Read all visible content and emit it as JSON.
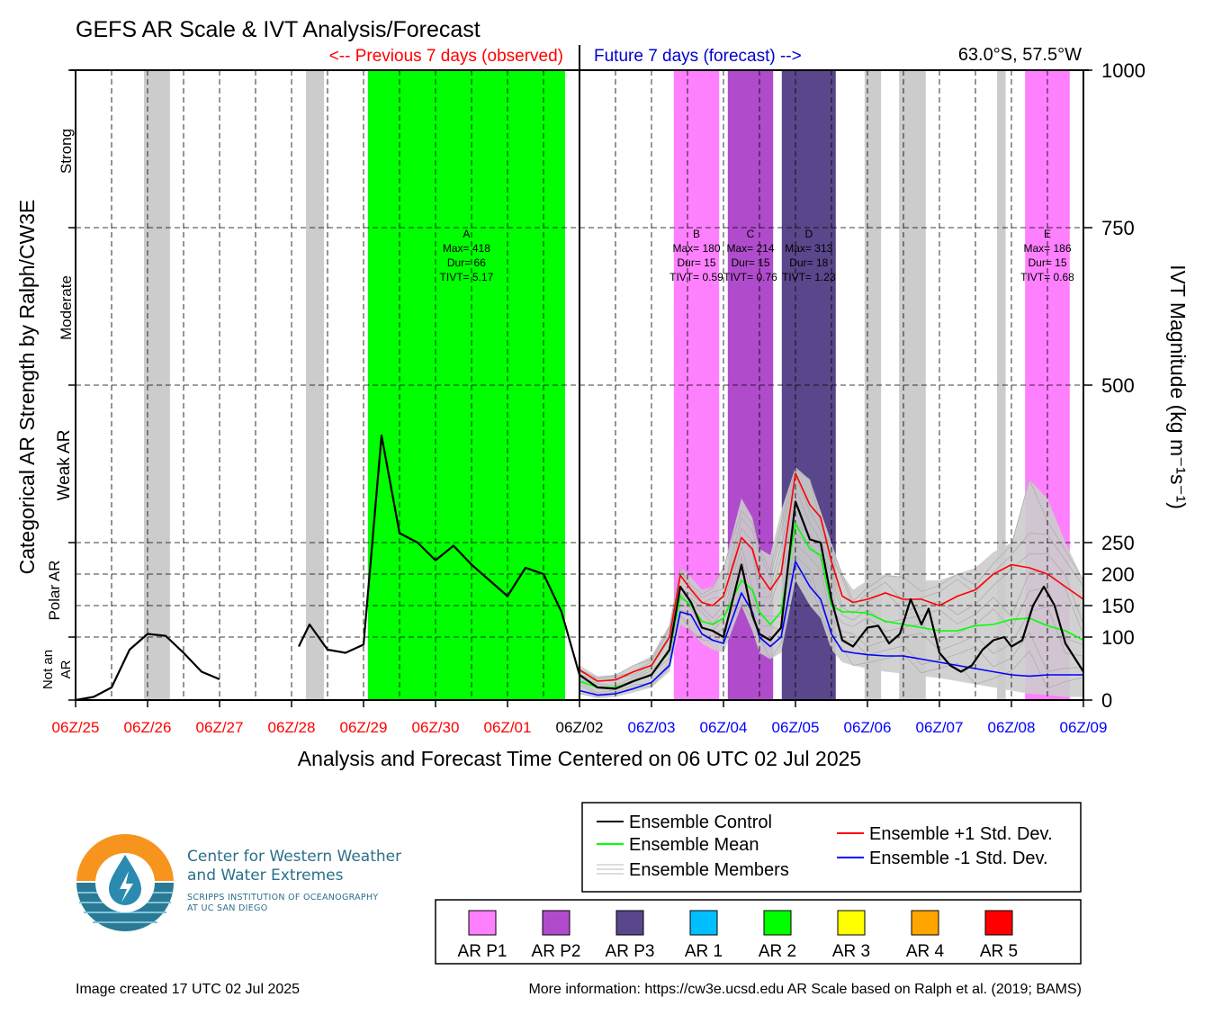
{
  "title": "GEFS AR Scale & IVT Analysis/Forecast",
  "location": "63.0°S, 57.5°W",
  "previous_label": "<-- Previous 7 days (observed)",
  "future_label": "Future 7 days (forecast) -->",
  "xlabel": "Analysis and Forecast Time Centered on 06 UTC 02 Jul 2025",
  "ylabel_left": "Categorical AR Strength by Ralph/CW3E",
  "ylabel_right": "IVT Magnitude (kg m⁻¹s⁻¹)",
  "category_labels": [
    "Strong",
    "Moderate",
    "Weak AR",
    "Polar AR",
    "Not an",
    "AR"
  ],
  "legend": {
    "control": "Ensemble Control",
    "mean": "Ensemble Mean",
    "members": "Ensemble Members",
    "plus_std": "Ensemble +1 Std. Dev.",
    "minus_std": "Ensemble -1 Std. Dev."
  },
  "ar_legend": [
    {
      "label": "AR P1",
      "color": "#ff80ff"
    },
    {
      "label": "AR P2",
      "color": "#b04ccc"
    },
    {
      "label": "AR P3",
      "color": "#5a468a"
    },
    {
      "label": "AR 1",
      "color": "#00bfff"
    },
    {
      "label": "AR 2",
      "color": "#00ff00"
    },
    {
      "label": "AR 3",
      "color": "#ffff00"
    },
    {
      "label": "AR 4",
      "color": "#ffa500"
    },
    {
      "label": "AR 5",
      "color": "#ff0000"
    }
  ],
  "logo": {
    "title_line1": "Center for Western Weather",
    "title_line2": "and Water Extremes",
    "sub_line1": "SCRIPPS INSTITUTION OF OCEANOGRAPHY",
    "sub_line2": "AT UC SAN DIEGO"
  },
  "footer_left": "Image created 17 UTC 02 Jul 2025",
  "footer_right": "More information: https://cw3e.ucsd.edu AR Scale based on Ralph et al. (2019; BAMS)",
  "chart_data": {
    "type": "line",
    "x_unit": "days relative to 06Z/02 Jul 2025",
    "xlim": [
      -7,
      7
    ],
    "ylim": [
      0,
      1000
    ],
    "grid": true,
    "x_ticks": [
      {
        "x": -7,
        "label": "06Z/25",
        "color": "#ff0000"
      },
      {
        "x": -6,
        "label": "06Z/26",
        "color": "#ff0000"
      },
      {
        "x": -5,
        "label": "06Z/27",
        "color": "#ff0000"
      },
      {
        "x": -4,
        "label": "06Z/28",
        "color": "#ff0000"
      },
      {
        "x": -3,
        "label": "06Z/29",
        "color": "#ff0000"
      },
      {
        "x": -2,
        "label": "06Z/30",
        "color": "#ff0000"
      },
      {
        "x": -1,
        "label": "06Z/01",
        "color": "#ff0000"
      },
      {
        "x": 0,
        "label": "06Z/02",
        "color": "#000000"
      },
      {
        "x": 1,
        "label": "06Z/03",
        "color": "#0000ff"
      },
      {
        "x": 2,
        "label": "06Z/04",
        "color": "#0000ff"
      },
      {
        "x": 3,
        "label": "06Z/05",
        "color": "#0000ff"
      },
      {
        "x": 4,
        "label": "06Z/06",
        "color": "#0000ff"
      },
      {
        "x": 5,
        "label": "06Z/07",
        "color": "#0000ff"
      },
      {
        "x": 6,
        "label": "06Z/08",
        "color": "#0000ff"
      },
      {
        "x": 7,
        "label": "06Z/09",
        "color": "#0000ff"
      }
    ],
    "y_ticks_right": [
      0,
      100,
      150,
      200,
      250,
      500,
      750,
      1000
    ],
    "grey_bands": [
      [
        -6.05,
        -5.69
      ],
      [
        -3.8,
        -3.55
      ],
      [
        3.96,
        4.19
      ],
      [
        4.44,
        4.81
      ],
      [
        5.8,
        5.92
      ]
    ],
    "ar_events": [
      {
        "id": "A",
        "start": -2.94,
        "end": -0.2,
        "color": "#00ff00",
        "max": 418,
        "dur": 66,
        "tivt": "5.17"
      },
      {
        "id": "B",
        "start": 1.31,
        "end": 1.94,
        "color": "#ff80ff",
        "max": 180,
        "dur": 15,
        "tivt": "0.59"
      },
      {
        "id": "C",
        "start": 2.06,
        "end": 2.69,
        "color": "#b04ccc",
        "max": 214,
        "dur": 15,
        "tivt": "0.76"
      },
      {
        "id": "D",
        "start": 2.81,
        "end": 3.56,
        "color": "#5a468a",
        "max": 313,
        "dur": 18,
        "tivt": "1.23"
      },
      {
        "id": "E",
        "start": 6.19,
        "end": 6.81,
        "color": "#ff80ff",
        "max": 186,
        "dur": 15,
        "tivt": "0.68"
      }
    ],
    "series": [
      {
        "name": "Ensemble Control",
        "color": "#000000",
        "segments": [
          [
            [
              -7,
              0
            ],
            [
              -6.75,
              5
            ],
            [
              -6.5,
              20
            ],
            [
              -6.25,
              80
            ],
            [
              -6,
              105
            ],
            [
              -5.75,
              102
            ],
            [
              -5.5,
              75
            ],
            [
              -5.25,
              45
            ],
            [
              -5,
              33
            ]
          ],
          [
            [
              -3.9,
              85
            ],
            [
              -3.75,
              120
            ],
            [
              -3.5,
              80
            ],
            [
              -3.25,
              75
            ],
            [
              -3,
              88
            ],
            [
              -2.75,
              420
            ],
            [
              -2.5,
              265
            ],
            [
              -2.25,
              250
            ],
            [
              -2,
              222
            ],
            [
              -1.75,
              245
            ],
            [
              -1.5,
              215
            ],
            [
              -1.25,
              190
            ],
            [
              -1,
              165
            ],
            [
              -0.75,
              210
            ],
            [
              -0.5,
              200
            ],
            [
              -0.25,
              140
            ],
            [
              0,
              40
            ],
            [
              0.25,
              20
            ],
            [
              0.5,
              18
            ],
            [
              0.75,
              30
            ],
            [
              1,
              40
            ],
            [
              1.25,
              80
            ],
            [
              1.4,
              180
            ],
            [
              1.55,
              155
            ],
            [
              1.7,
              115
            ],
            [
              1.85,
              110
            ],
            [
              2,
              100
            ],
            [
              2.25,
              215
            ],
            [
              2.4,
              135
            ],
            [
              2.5,
              105
            ],
            [
              2.65,
              95
            ],
            [
              2.8,
              115
            ],
            [
              3,
              315
            ],
            [
              3.2,
              255
            ],
            [
              3.35,
              250
            ],
            [
              3.5,
              160
            ],
            [
              3.65,
              95
            ],
            [
              3.8,
              85
            ],
            [
              4,
              115
            ],
            [
              4.15,
              118
            ],
            [
              4.3,
              90
            ],
            [
              4.45,
              105
            ],
            [
              4.6,
              160
            ],
            [
              4.75,
              120
            ],
            [
              4.85,
              145
            ],
            [
              5,
              75
            ],
            [
              5.15,
              55
            ],
            [
              5.3,
              45
            ],
            [
              5.45,
              55
            ],
            [
              5.6,
              80
            ],
            [
              5.75,
              95
            ],
            [
              5.9,
              100
            ],
            [
              6,
              85
            ],
            [
              6.15,
              95
            ],
            [
              6.3,
              150
            ],
            [
              6.45,
              180
            ],
            [
              6.6,
              150
            ],
            [
              6.75,
              90
            ],
            [
              7,
              45
            ]
          ]
        ]
      },
      {
        "name": "Ensemble Mean",
        "color": "#00ff00",
        "segments": [
          [
            [
              0,
              30
            ],
            [
              0.25,
              20
            ],
            [
              0.5,
              20
            ],
            [
              0.75,
              30
            ],
            [
              1,
              40
            ],
            [
              1.25,
              78
            ],
            [
              1.4,
              165
            ],
            [
              1.55,
              150
            ],
            [
              1.7,
              125
            ],
            [
              1.85,
              120
            ],
            [
              2,
              130
            ],
            [
              2.25,
              190
            ],
            [
              2.4,
              175
            ],
            [
              2.5,
              140
            ],
            [
              2.65,
              120
            ],
            [
              2.8,
              140
            ],
            [
              3,
              280
            ],
            [
              3.2,
              240
            ],
            [
              3.35,
              230
            ],
            [
              3.5,
              150
            ],
            [
              3.65,
              140
            ],
            [
              3.8,
              140
            ],
            [
              4,
              138
            ],
            [
              4.25,
              125
            ],
            [
              4.5,
              120
            ],
            [
              4.75,
              115
            ],
            [
              5,
              110
            ],
            [
              5.25,
              110
            ],
            [
              5.5,
              118
            ],
            [
              5.75,
              120
            ],
            [
              6,
              128
            ],
            [
              6.25,
              130
            ],
            [
              6.5,
              118
            ],
            [
              6.75,
              110
            ],
            [
              7,
              95
            ]
          ]
        ]
      },
      {
        "name": "Ensemble +1 Std. Dev.",
        "color": "#ff0000",
        "segments": [
          [
            [
              0,
              48
            ],
            [
              0.25,
              30
            ],
            [
              0.5,
              32
            ],
            [
              0.75,
              45
            ],
            [
              1,
              55
            ],
            [
              1.25,
              100
            ],
            [
              1.4,
              198
            ],
            [
              1.55,
              175
            ],
            [
              1.7,
              155
            ],
            [
              1.85,
              150
            ],
            [
              2,
              165
            ],
            [
              2.25,
              258
            ],
            [
              2.4,
              240
            ],
            [
              2.5,
              200
            ],
            [
              2.65,
              175
            ],
            [
              2.8,
              200
            ],
            [
              3,
              360
            ],
            [
              3.2,
              310
            ],
            [
              3.35,
              290
            ],
            [
              3.5,
              220
            ],
            [
              3.65,
              165
            ],
            [
              3.8,
              155
            ],
            [
              4,
              160
            ],
            [
              4.25,
              170
            ],
            [
              4.5,
              160
            ],
            [
              4.75,
              160
            ],
            [
              5,
              150
            ],
            [
              5.25,
              165
            ],
            [
              5.5,
              175
            ],
            [
              5.75,
              200
            ],
            [
              6,
              215
            ],
            [
              6.25,
              210
            ],
            [
              6.5,
              200
            ],
            [
              6.75,
              180
            ],
            [
              7,
              160
            ]
          ]
        ]
      },
      {
        "name": "Ensemble -1 Std. Dev.",
        "color": "#0000ff",
        "segments": [
          [
            [
              0,
              15
            ],
            [
              0.25,
              8
            ],
            [
              0.5,
              10
            ],
            [
              0.75,
              18
            ],
            [
              1,
              28
            ],
            [
              1.25,
              55
            ],
            [
              1.4,
              140
            ],
            [
              1.55,
              135
            ],
            [
              1.7,
              105
            ],
            [
              1.85,
              95
            ],
            [
              2,
              90
            ],
            [
              2.25,
              170
            ],
            [
              2.4,
              140
            ],
            [
              2.5,
              100
            ],
            [
              2.65,
              85
            ],
            [
              2.8,
              100
            ],
            [
              3,
              220
            ],
            [
              3.2,
              180
            ],
            [
              3.35,
              160
            ],
            [
              3.5,
              105
            ],
            [
              3.65,
              78
            ],
            [
              3.8,
              75
            ],
            [
              4,
              72
            ],
            [
              4.25,
              70
            ],
            [
              4.5,
              70
            ],
            [
              4.75,
              65
            ],
            [
              5,
              60
            ],
            [
              5.25,
              55
            ],
            [
              5.5,
              50
            ],
            [
              5.75,
              45
            ],
            [
              6,
              40
            ],
            [
              6.25,
              38
            ],
            [
              6.5,
              40
            ],
            [
              6.75,
              40
            ],
            [
              7,
              40
            ]
          ]
        ]
      }
    ],
    "members_envelope": {
      "x": [
        0,
        0.25,
        0.5,
        0.75,
        1,
        1.25,
        1.4,
        1.55,
        1.7,
        1.85,
        2,
        2.25,
        2.4,
        2.5,
        2.65,
        2.8,
        3,
        3.2,
        3.35,
        3.5,
        3.65,
        3.8,
        4,
        4.25,
        4.5,
        4.75,
        5,
        5.25,
        5.5,
        5.75,
        6,
        6.25,
        6.5,
        6.75,
        7
      ],
      "upper": [
        55,
        38,
        40,
        55,
        70,
        120,
        210,
        195,
        175,
        180,
        210,
        320,
        290,
        240,
        230,
        300,
        370,
        350,
        300,
        250,
        200,
        175,
        190,
        200,
        195,
        190,
        190,
        200,
        210,
        235,
        250,
        350,
        320,
        250,
        190
      ],
      "lower": [
        10,
        3,
        5,
        12,
        20,
        45,
        120,
        110,
        90,
        80,
        75,
        150,
        110,
        75,
        65,
        75,
        190,
        150,
        130,
        80,
        60,
        55,
        50,
        45,
        42,
        38,
        35,
        30,
        25,
        20,
        15,
        10,
        8,
        5,
        5
      ]
    }
  }
}
